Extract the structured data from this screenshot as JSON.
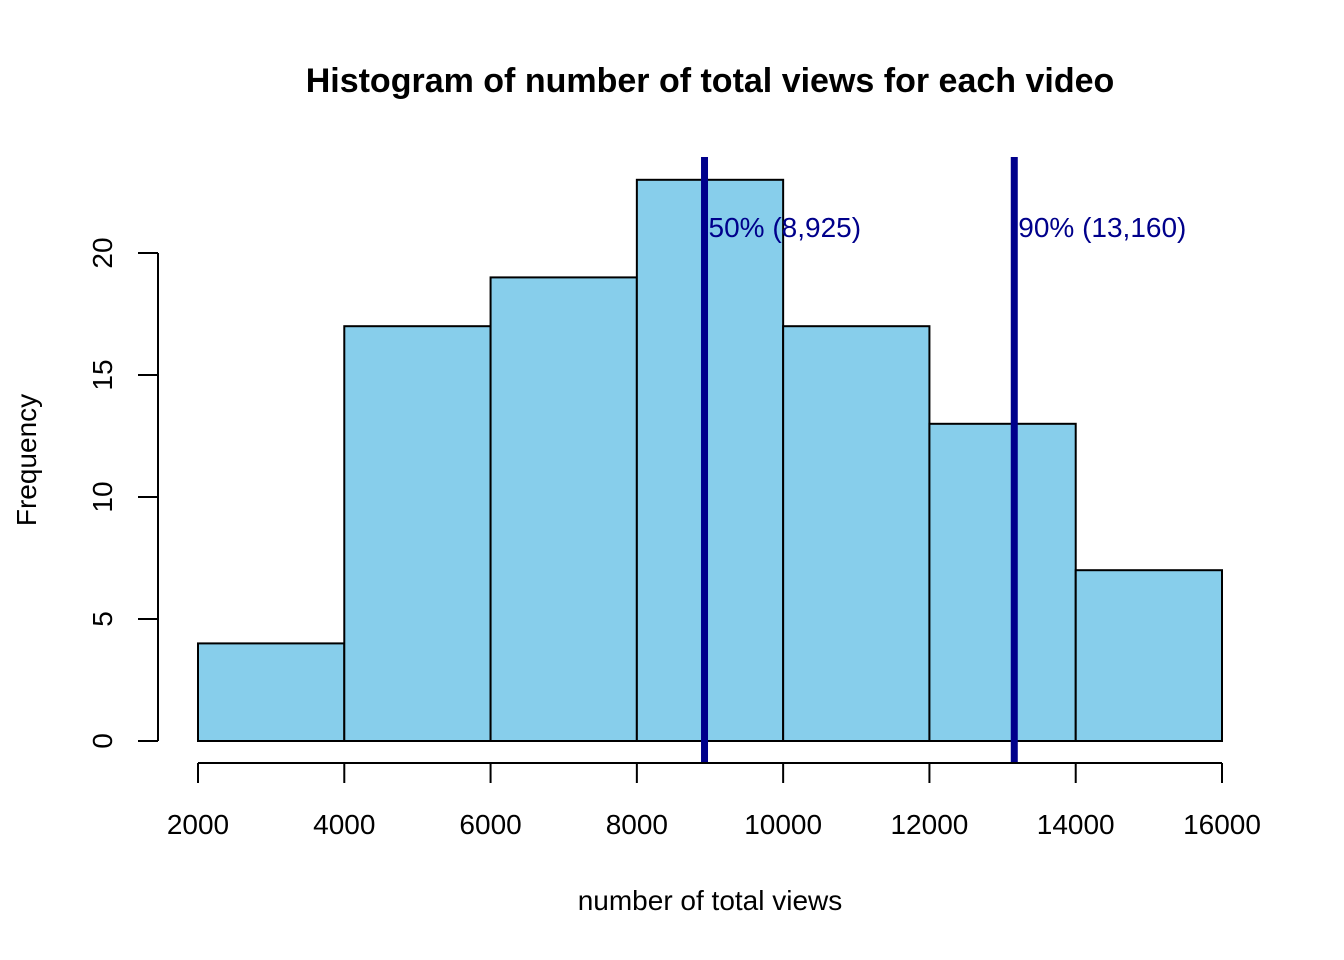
{
  "chart_data": {
    "type": "bar",
    "subtype": "histogram",
    "title": "Histogram of number of total views for each video",
    "xlabel": "number of total views",
    "ylabel": "Frequency",
    "bins": [
      {
        "start": 2000,
        "end": 4000,
        "count": 4
      },
      {
        "start": 4000,
        "end": 6000,
        "count": 17
      },
      {
        "start": 6000,
        "end": 8000,
        "count": 19
      },
      {
        "start": 8000,
        "end": 10000,
        "count": 23
      },
      {
        "start": 10000,
        "end": 12000,
        "count": 17
      },
      {
        "start": 12000,
        "end": 14000,
        "count": 13
      },
      {
        "start": 14000,
        "end": 16000,
        "count": 7
      }
    ],
    "xlim": [
      2000,
      16000
    ],
    "ylim": [
      0,
      23
    ],
    "xticks": [
      2000,
      4000,
      6000,
      8000,
      10000,
      12000,
      14000,
      16000
    ],
    "yticks": [
      0,
      5,
      10,
      15,
      20
    ],
    "bar_color": "#87CEEB",
    "grid": false,
    "annotations": [
      {
        "x": 8925,
        "label": "50% (8,925)",
        "color": "#00008B"
      },
      {
        "x": 13160,
        "label": "90% (13,160)",
        "color": "#00008B"
      }
    ]
  }
}
